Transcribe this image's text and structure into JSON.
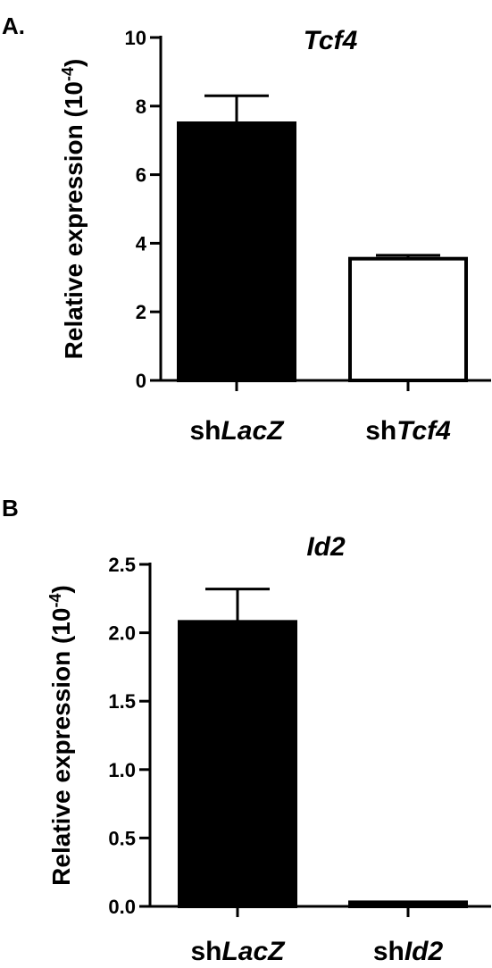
{
  "panels": [
    {
      "letter": "A.",
      "chart_data": {
        "type": "bar",
        "title": "Tcf4",
        "ylabel": "Relative expression (10",
        "ylabel_sup": "-4",
        "ylabel_close": ")",
        "categories": [
          {
            "prefix": "sh",
            "italic": "LacZ"
          },
          {
            "prefix": "sh",
            "italic": "Tcf4"
          }
        ],
        "values": [
          7.5,
          3.55
        ],
        "errors": [
          0.8,
          0.1
        ],
        "bar_fill": [
          "#000000",
          "#ffffff"
        ],
        "ylim": [
          0,
          10
        ],
        "yticks": [
          0,
          2,
          4,
          6,
          8,
          10
        ],
        "ytick_labels": [
          "0",
          "2",
          "4",
          "6",
          "8",
          "10"
        ],
        "grid": false,
        "legend": "none"
      }
    },
    {
      "letter": "B",
      "chart_data": {
        "type": "bar",
        "title": "Id2",
        "ylabel": "Relative expression (10",
        "ylabel_sup": "-4",
        "ylabel_close": ")",
        "categories": [
          {
            "prefix": "sh",
            "italic": "LacZ"
          },
          {
            "prefix": "sh",
            "italic": "Id2"
          }
        ],
        "values": [
          2.08,
          0.03
        ],
        "errors": [
          0.24,
          0.0
        ],
        "bar_fill": [
          "#000000",
          "#000000"
        ],
        "ylim": [
          0,
          2.5
        ],
        "yticks": [
          0,
          0.5,
          1.0,
          1.5,
          2.0,
          2.5
        ],
        "ytick_labels": [
          "0.0",
          "0.5",
          "1.0",
          "1.5",
          "2.0",
          "2.5"
        ],
        "grid": false,
        "legend": "none"
      }
    }
  ]
}
